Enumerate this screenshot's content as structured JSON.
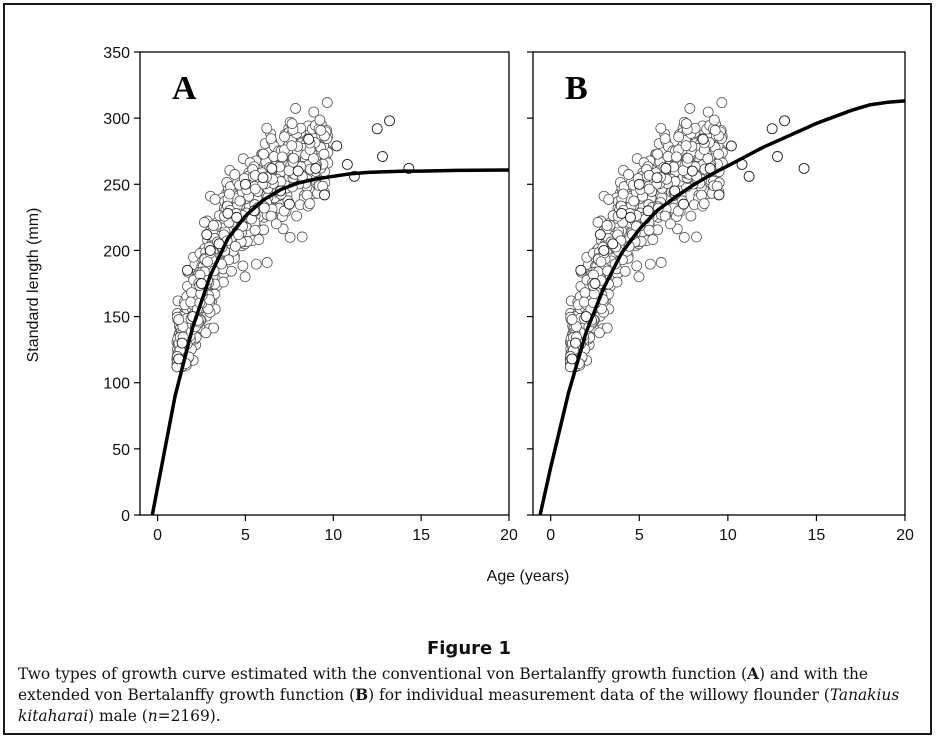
{
  "figure": {
    "title": "Figure 1",
    "caption": {
      "t1": "Two types of growth curve estimated with the conventional von Bertalanffy growth function (",
      "b1": "A",
      "t2": ") and with the extended von Bertalanffy growth function (",
      "b2": "B",
      "t3": ") for individual measurement data of the willowy flounder (",
      "i1": "Tanakius kitaharai",
      "t4": ") male (",
      "i2": "n",
      "t5": "=2169)."
    }
  },
  "chart_data": [
    {
      "type": "scatter",
      "panel_label": "A",
      "xlabel": "Age (years)",
      "ylabel": "Standard length (mm)",
      "xlim": [
        -1,
        20
      ],
      "ylim": [
        0,
        350
      ],
      "xticks": [
        0,
        5,
        10,
        15,
        20
      ],
      "yticks": [
        0,
        50,
        100,
        150,
        200,
        250,
        300,
        350
      ],
      "grid": false,
      "points_sample": [
        {
          "x": 1.2,
          "y": 118
        },
        {
          "x": 1.4,
          "y": 130
        },
        {
          "x": 1.7,
          "y": 185
        },
        {
          "x": 2.0,
          "y": 150
        },
        {
          "x": 2.5,
          "y": 175
        },
        {
          "x": 2.8,
          "y": 212
        },
        {
          "x": 3.0,
          "y": 200
        },
        {
          "x": 3.5,
          "y": 205
        },
        {
          "x": 4.0,
          "y": 228
        },
        {
          "x": 4.5,
          "y": 225
        },
        {
          "x": 5.0,
          "y": 250
        },
        {
          "x": 5.5,
          "y": 230
        },
        {
          "x": 6.0,
          "y": 255
        },
        {
          "x": 6.5,
          "y": 262
        },
        {
          "x": 7.0,
          "y": 245
        },
        {
          "x": 7.5,
          "y": 235
        },
        {
          "x": 8.0,
          "y": 260
        },
        {
          "x": 8.6,
          "y": 284
        },
        {
          "x": 9.0,
          "y": 262
        },
        {
          "x": 9.5,
          "y": 242
        },
        {
          "x": 10.2,
          "y": 279
        },
        {
          "x": 10.8,
          "y": 265
        },
        {
          "x": 11.2,
          "y": 256
        },
        {
          "x": 12.5,
          "y": 292
        },
        {
          "x": 12.8,
          "y": 271
        },
        {
          "x": 13.2,
          "y": 298
        },
        {
          "x": 14.3,
          "y": 262
        }
      ],
      "curve": {
        "x": [
          -0.3,
          0,
          1,
          2,
          3,
          4,
          5,
          6,
          7,
          8,
          9,
          10,
          11,
          12,
          13,
          14,
          15,
          16,
          17,
          18,
          19,
          20
        ],
        "y": [
          0,
          21,
          90,
          142,
          181,
          209,
          226,
          238,
          246,
          251,
          254,
          256,
          258,
          259,
          259.5,
          260,
          260,
          260.3,
          260.5,
          260.6,
          260.7,
          260.8
        ]
      }
    },
    {
      "type": "scatter",
      "panel_label": "B",
      "xlabel": "Age (years)",
      "ylabel": "Standard length (mm)",
      "xlim": [
        -1,
        20
      ],
      "ylim": [
        0,
        350
      ],
      "xticks": [
        0,
        5,
        10,
        15,
        20
      ],
      "yticks": [
        0,
        50,
        100,
        150,
        200,
        250,
        300,
        350
      ],
      "grid": false,
      "points_sample": [
        {
          "x": 1.2,
          "y": 118
        },
        {
          "x": 1.4,
          "y": 130
        },
        {
          "x": 1.7,
          "y": 185
        },
        {
          "x": 2.0,
          "y": 150
        },
        {
          "x": 2.5,
          "y": 175
        },
        {
          "x": 2.8,
          "y": 212
        },
        {
          "x": 3.0,
          "y": 200
        },
        {
          "x": 3.5,
          "y": 205
        },
        {
          "x": 4.0,
          "y": 228
        },
        {
          "x": 4.5,
          "y": 225
        },
        {
          "x": 5.0,
          "y": 250
        },
        {
          "x": 5.5,
          "y": 230
        },
        {
          "x": 6.0,
          "y": 255
        },
        {
          "x": 6.5,
          "y": 262
        },
        {
          "x": 7.0,
          "y": 245
        },
        {
          "x": 7.5,
          "y": 235
        },
        {
          "x": 8.0,
          "y": 260
        },
        {
          "x": 8.6,
          "y": 284
        },
        {
          "x": 9.0,
          "y": 262
        },
        {
          "x": 9.5,
          "y": 242
        },
        {
          "x": 10.2,
          "y": 279
        },
        {
          "x": 10.8,
          "y": 265
        },
        {
          "x": 11.2,
          "y": 256
        },
        {
          "x": 12.5,
          "y": 292
        },
        {
          "x": 12.8,
          "y": 271
        },
        {
          "x": 13.2,
          "y": 298
        },
        {
          "x": 14.3,
          "y": 262
        }
      ],
      "curve": {
        "x": [
          -0.6,
          0,
          1,
          2,
          3,
          4,
          5,
          6,
          7,
          8,
          9,
          10,
          11,
          12,
          13,
          14,
          15,
          16,
          17,
          18,
          19,
          20
        ],
        "y": [
          0,
          36,
          92,
          138,
          172,
          198,
          216,
          230,
          240,
          249,
          257,
          264,
          271,
          278,
          284,
          290,
          296,
          301,
          306,
          310,
          312,
          313
        ]
      }
    }
  ]
}
